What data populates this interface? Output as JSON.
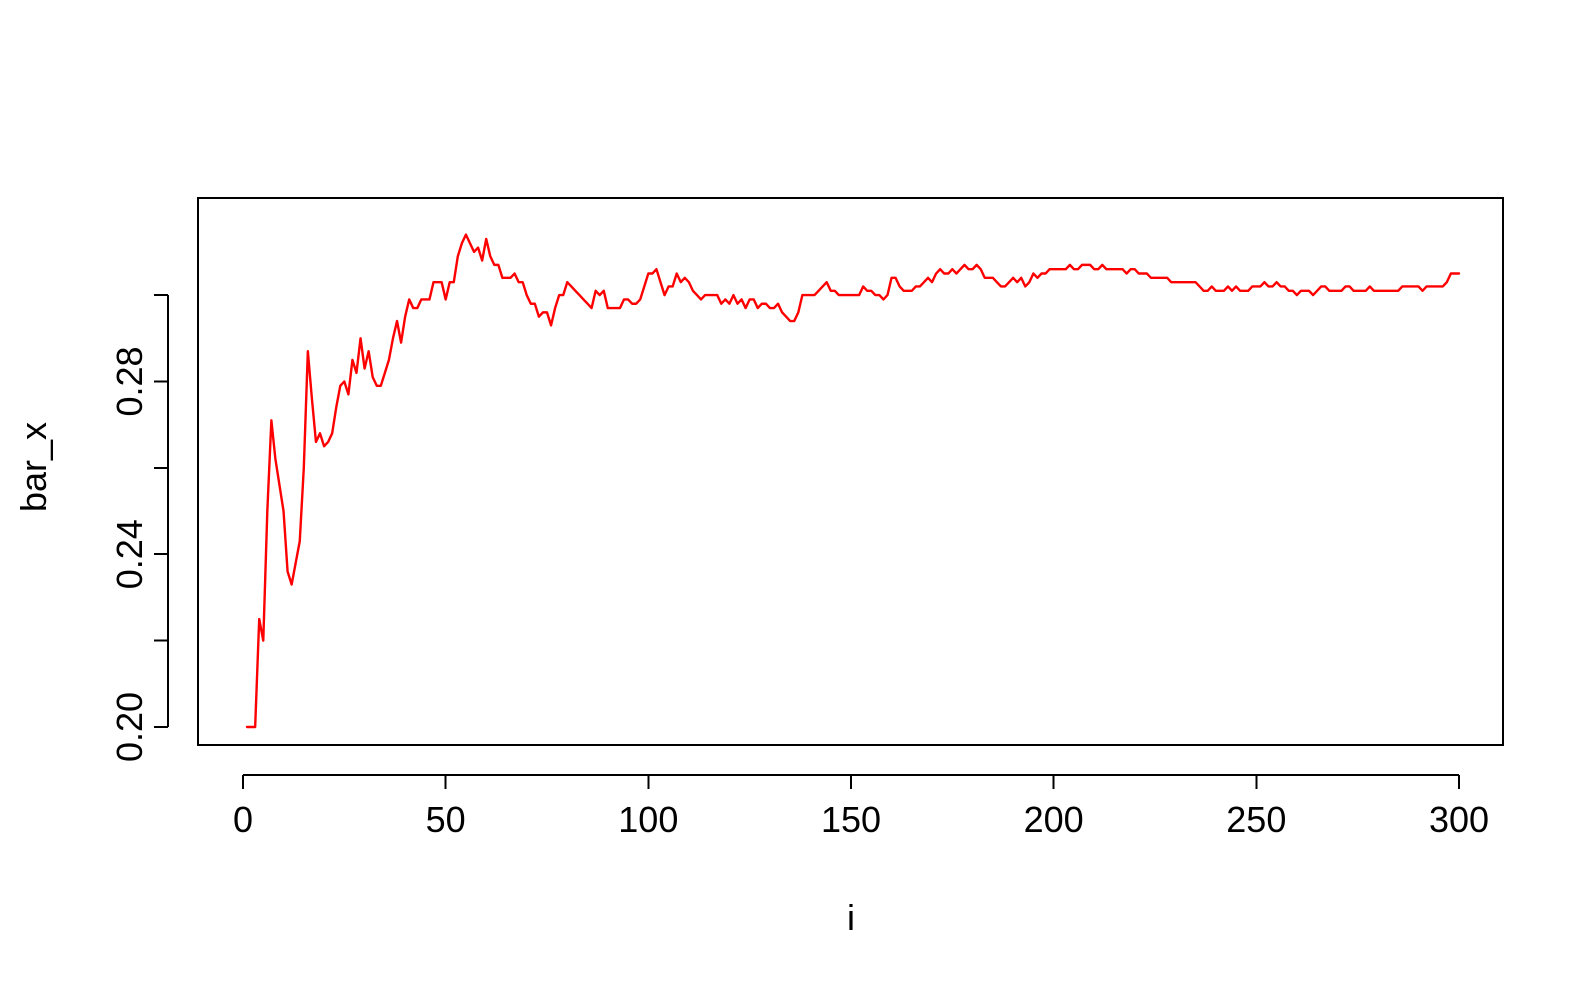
{
  "chart_data": {
    "type": "line",
    "title": "",
    "xlabel": "i",
    "ylabel": "bar_x",
    "xlim": [
      1,
      300
    ],
    "ylim": [
      0.2,
      0.32
    ],
    "x_ticks": [
      0,
      50,
      100,
      150,
      200,
      250,
      300
    ],
    "y_ticks": [
      0.2,
      0.22,
      0.24,
      0.26,
      0.28,
      0.3
    ],
    "y_tick_labels": [
      "0.20",
      "",
      "0.24",
      "",
      "0.28",
      ""
    ],
    "grid": false,
    "legend": "none",
    "series": [
      {
        "color": "#ff0000",
        "points": [
          [
            1,
            0.2
          ],
          [
            2,
            0.2
          ],
          [
            3,
            0.2
          ],
          [
            4,
            0.225
          ],
          [
            5,
            0.22
          ],
          [
            6,
            0.25
          ],
          [
            7,
            0.271
          ],
          [
            8,
            0.262
          ],
          [
            9,
            0.256
          ],
          [
            10,
            0.25
          ],
          [
            11,
            0.236
          ],
          [
            12,
            0.233
          ],
          [
            13,
            0.238
          ],
          [
            14,
            0.243
          ],
          [
            15,
            0.26
          ],
          [
            16,
            0.287
          ],
          [
            17,
            0.276
          ],
          [
            18,
            0.266
          ],
          [
            19,
            0.268
          ],
          [
            20,
            0.265
          ],
          [
            21,
            0.266
          ],
          [
            22,
            0.268
          ],
          [
            23,
            0.274
          ],
          [
            24,
            0.279
          ],
          [
            25,
            0.28
          ],
          [
            26,
            0.277
          ],
          [
            27,
            0.285
          ],
          [
            28,
            0.282
          ],
          [
            29,
            0.29
          ],
          [
            30,
            0.283
          ],
          [
            31,
            0.287
          ],
          [
            32,
            0.281
          ],
          [
            33,
            0.279
          ],
          [
            34,
            0.279
          ],
          [
            35,
            0.282
          ],
          [
            36,
            0.285
          ],
          [
            37,
            0.29
          ],
          [
            38,
            0.294
          ],
          [
            39,
            0.289
          ],
          [
            40,
            0.295
          ],
          [
            41,
            0.299
          ],
          [
            42,
            0.297
          ],
          [
            43,
            0.297
          ],
          [
            44,
            0.299
          ],
          [
            45,
            0.299
          ],
          [
            46,
            0.299
          ],
          [
            47,
            0.303
          ],
          [
            48,
            0.303
          ],
          [
            49,
            0.303
          ],
          [
            50,
            0.299
          ],
          [
            51,
            0.303
          ],
          [
            52,
            0.303
          ],
          [
            53,
            0.309
          ],
          [
            54,
            0.312
          ],
          [
            55,
            0.314
          ],
          [
            56,
            0.312
          ],
          [
            57,
            0.31
          ],
          [
            58,
            0.311
          ],
          [
            59,
            0.308
          ],
          [
            60,
            0.313
          ],
          [
            61,
            0.309
          ],
          [
            62,
            0.307
          ],
          [
            63,
            0.307
          ],
          [
            64,
            0.304
          ],
          [
            65,
            0.304
          ],
          [
            66,
            0.304
          ],
          [
            67,
            0.305
          ],
          [
            68,
            0.303
          ],
          [
            69,
            0.303
          ],
          [
            70,
            0.3
          ],
          [
            71,
            0.298
          ],
          [
            72,
            0.298
          ],
          [
            73,
            0.295
          ],
          [
            74,
            0.296
          ],
          [
            75,
            0.296
          ],
          [
            76,
            0.293
          ],
          [
            77,
            0.297
          ],
          [
            78,
            0.3
          ],
          [
            79,
            0.3
          ],
          [
            80,
            0.303
          ],
          [
            81,
            0.302
          ],
          [
            82,
            0.301
          ],
          [
            83,
            0.3
          ],
          [
            84,
            0.299
          ],
          [
            85,
            0.298
          ],
          [
            86,
            0.297
          ],
          [
            87,
            0.301
          ],
          [
            88,
            0.3
          ],
          [
            89,
            0.301
          ],
          [
            90,
            0.297
          ],
          [
            91,
            0.297
          ],
          [
            92,
            0.297
          ],
          [
            93,
            0.297
          ],
          [
            94,
            0.299
          ],
          [
            95,
            0.299
          ],
          [
            96,
            0.298
          ],
          [
            97,
            0.298
          ],
          [
            98,
            0.299
          ],
          [
            99,
            0.302
          ],
          [
            100,
            0.305
          ],
          [
            101,
            0.305
          ],
          [
            102,
            0.306
          ],
          [
            103,
            0.303
          ],
          [
            104,
            0.3
          ],
          [
            105,
            0.302
          ],
          [
            106,
            0.302
          ],
          [
            107,
            0.305
          ],
          [
            108,
            0.303
          ],
          [
            109,
            0.304
          ],
          [
            110,
            0.303
          ],
          [
            111,
            0.301
          ],
          [
            112,
            0.3
          ],
          [
            113,
            0.299
          ],
          [
            114,
            0.3
          ],
          [
            115,
            0.3
          ],
          [
            116,
            0.3
          ],
          [
            117,
            0.3
          ],
          [
            118,
            0.298
          ],
          [
            119,
            0.299
          ],
          [
            120,
            0.298
          ],
          [
            121,
            0.3
          ],
          [
            122,
            0.298
          ],
          [
            123,
            0.299
          ],
          [
            124,
            0.297
          ],
          [
            125,
            0.299
          ],
          [
            126,
            0.299
          ],
          [
            127,
            0.297
          ],
          [
            128,
            0.298
          ],
          [
            129,
            0.298
          ],
          [
            130,
            0.297
          ],
          [
            131,
            0.297
          ],
          [
            132,
            0.298
          ],
          [
            133,
            0.296
          ],
          [
            134,
            0.295
          ],
          [
            135,
            0.294
          ],
          [
            136,
            0.294
          ],
          [
            137,
            0.296
          ],
          [
            138,
            0.3
          ],
          [
            139,
            0.3
          ],
          [
            140,
            0.3
          ],
          [
            141,
            0.3
          ],
          [
            142,
            0.301
          ],
          [
            143,
            0.302
          ],
          [
            144,
            0.303
          ],
          [
            145,
            0.301
          ],
          [
            146,
            0.301
          ],
          [
            147,
            0.3
          ],
          [
            148,
            0.3
          ],
          [
            149,
            0.3
          ],
          [
            150,
            0.3
          ],
          [
            151,
            0.3
          ],
          [
            152,
            0.3
          ],
          [
            153,
            0.302
          ],
          [
            154,
            0.301
          ],
          [
            155,
            0.301
          ],
          [
            156,
            0.3
          ],
          [
            157,
            0.3
          ],
          [
            158,
            0.299
          ],
          [
            159,
            0.3
          ],
          [
            160,
            0.304
          ],
          [
            161,
            0.304
          ],
          [
            162,
            0.302
          ],
          [
            163,
            0.301
          ],
          [
            164,
            0.301
          ],
          [
            165,
            0.301
          ],
          [
            166,
            0.302
          ],
          [
            167,
            0.302
          ],
          [
            168,
            0.303
          ],
          [
            169,
            0.304
          ],
          [
            170,
            0.303
          ],
          [
            171,
            0.305
          ],
          [
            172,
            0.306
          ],
          [
            173,
            0.305
          ],
          [
            174,
            0.305
          ],
          [
            175,
            0.306
          ],
          [
            176,
            0.305
          ],
          [
            177,
            0.306
          ],
          [
            178,
            0.307
          ],
          [
            179,
            0.306
          ],
          [
            180,
            0.306
          ],
          [
            181,
            0.307
          ],
          [
            182,
            0.306
          ],
          [
            183,
            0.304
          ],
          [
            184,
            0.304
          ],
          [
            185,
            0.304
          ],
          [
            186,
            0.303
          ],
          [
            187,
            0.302
          ],
          [
            188,
            0.302
          ],
          [
            189,
            0.303
          ],
          [
            190,
            0.304
          ],
          [
            191,
            0.303
          ],
          [
            192,
            0.304
          ],
          [
            193,
            0.302
          ],
          [
            194,
            0.303
          ],
          [
            195,
            0.305
          ],
          [
            196,
            0.304
          ],
          [
            197,
            0.305
          ],
          [
            198,
            0.305
          ],
          [
            199,
            0.306
          ],
          [
            200,
            0.306
          ],
          [
            201,
            0.306
          ],
          [
            202,
            0.306
          ],
          [
            203,
            0.306
          ],
          [
            204,
            0.307
          ],
          [
            205,
            0.306
          ],
          [
            206,
            0.306
          ],
          [
            207,
            0.307
          ],
          [
            208,
            0.307
          ],
          [
            209,
            0.307
          ],
          [
            210,
            0.306
          ],
          [
            211,
            0.306
          ],
          [
            212,
            0.307
          ],
          [
            213,
            0.306
          ],
          [
            214,
            0.306
          ],
          [
            215,
            0.306
          ],
          [
            216,
            0.306
          ],
          [
            217,
            0.306
          ],
          [
            218,
            0.305
          ],
          [
            219,
            0.306
          ],
          [
            220,
            0.306
          ],
          [
            221,
            0.305
          ],
          [
            222,
            0.305
          ],
          [
            223,
            0.305
          ],
          [
            224,
            0.304
          ],
          [
            225,
            0.304
          ],
          [
            226,
            0.304
          ],
          [
            227,
            0.304
          ],
          [
            228,
            0.304
          ],
          [
            229,
            0.303
          ],
          [
            230,
            0.303
          ],
          [
            231,
            0.303
          ],
          [
            232,
            0.303
          ],
          [
            233,
            0.303
          ],
          [
            234,
            0.303
          ],
          [
            235,
            0.303
          ],
          [
            236,
            0.302
          ],
          [
            237,
            0.301
          ],
          [
            238,
            0.301
          ],
          [
            239,
            0.302
          ],
          [
            240,
            0.301
          ],
          [
            241,
            0.301
          ],
          [
            242,
            0.301
          ],
          [
            243,
            0.302
          ],
          [
            244,
            0.301
          ],
          [
            245,
            0.302
          ],
          [
            246,
            0.301
          ],
          [
            247,
            0.301
          ],
          [
            248,
            0.301
          ],
          [
            249,
            0.302
          ],
          [
            250,
            0.302
          ],
          [
            251,
            0.302
          ],
          [
            252,
            0.303
          ],
          [
            253,
            0.302
          ],
          [
            254,
            0.302
          ],
          [
            255,
            0.303
          ],
          [
            256,
            0.302
          ],
          [
            257,
            0.302
          ],
          [
            258,
            0.301
          ],
          [
            259,
            0.301
          ],
          [
            260,
            0.3
          ],
          [
            261,
            0.301
          ],
          [
            262,
            0.301
          ],
          [
            263,
            0.301
          ],
          [
            264,
            0.3
          ],
          [
            265,
            0.301
          ],
          [
            266,
            0.302
          ],
          [
            267,
            0.302
          ],
          [
            268,
            0.301
          ],
          [
            269,
            0.301
          ],
          [
            270,
            0.301
          ],
          [
            271,
            0.301
          ],
          [
            272,
            0.302
          ],
          [
            273,
            0.302
          ],
          [
            274,
            0.301
          ],
          [
            275,
            0.301
          ],
          [
            276,
            0.301
          ],
          [
            277,
            0.301
          ],
          [
            278,
            0.302
          ],
          [
            279,
            0.301
          ],
          [
            280,
            0.301
          ],
          [
            281,
            0.301
          ],
          [
            282,
            0.301
          ],
          [
            283,
            0.301
          ],
          [
            284,
            0.301
          ],
          [
            285,
            0.301
          ],
          [
            286,
            0.302
          ],
          [
            287,
            0.302
          ],
          [
            288,
            0.302
          ],
          [
            289,
            0.302
          ],
          [
            290,
            0.302
          ],
          [
            291,
            0.301
          ],
          [
            292,
            0.302
          ],
          [
            293,
            0.302
          ],
          [
            294,
            0.302
          ],
          [
            295,
            0.302
          ],
          [
            296,
            0.302
          ],
          [
            297,
            0.303
          ],
          [
            298,
            0.305
          ],
          [
            299,
            0.305
          ],
          [
            300,
            0.305
          ]
        ]
      }
    ]
  }
}
